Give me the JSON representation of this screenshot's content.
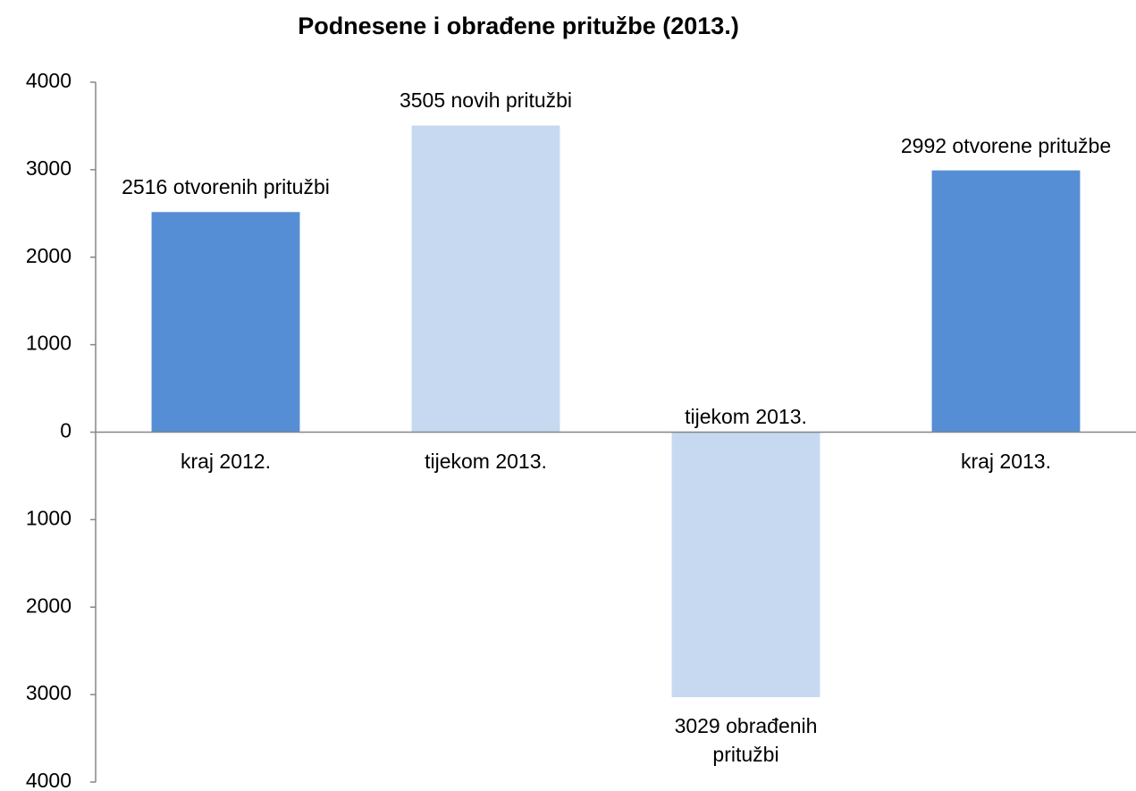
{
  "chart_data": {
    "type": "bar",
    "title": "Podnesene i obrađene pritužbe (2013.)",
    "categories": [
      "kraj 2012.",
      "tijekom 2013.",
      "tijekom 2013.",
      "kraj 2013."
    ],
    "values": [
      2516,
      3505,
      -3029,
      2992
    ],
    "value_labels": [
      "2516 otvorenih pritužbi",
      "3505 novih pritužbi",
      "3029 obrađenih pritužbi",
      "2992 otvorene pritužbe"
    ],
    "colors": [
      "#558ed5",
      "#c6d9f1",
      "#c6d9f1",
      "#558ed5"
    ],
    "ylim": [
      -4000,
      4000
    ],
    "yticks": [
      {
        "value": -4000,
        "label": "4000"
      },
      {
        "value": -3000,
        "label": "3000"
      },
      {
        "value": -2000,
        "label": "2000"
      },
      {
        "value": -1000,
        "label": "1000"
      },
      0,
      1000,
      2000,
      3000,
      4000
    ],
    "grid": false
  }
}
